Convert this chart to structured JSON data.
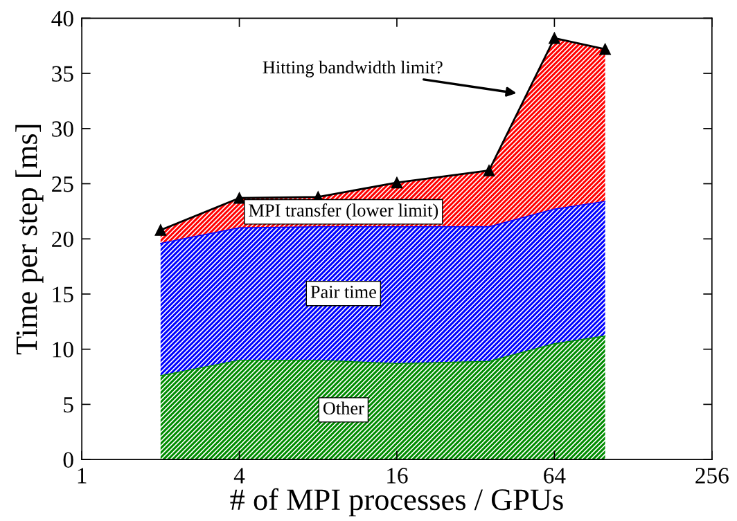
{
  "chart_data": {
    "type": "area",
    "stacked": true,
    "log": "x",
    "xlabel": "# of MPI processes / GPUs",
    "ylabel": "Time per step [ms]",
    "x": [
      2,
      4,
      8,
      16,
      36,
      64,
      100
    ],
    "series": [
      {
        "name": "Other",
        "color": "#008c00",
        "values": [
          7.6,
          9.0,
          9.0,
          8.7,
          8.9,
          10.5,
          11.2
        ]
      },
      {
        "name": "Pair time",
        "color": "#0000ff",
        "values": [
          12.0,
          12.0,
          12.1,
          12.4,
          12.2,
          12.2,
          12.2
        ]
      },
      {
        "name": "MPI transfer (lower limit)",
        "color": "#ff0000",
        "marker": "triangle",
        "values": [
          1.2,
          2.7,
          2.7,
          4.0,
          5.1,
          15.5,
          13.8
        ]
      }
    ],
    "line_style": "solid",
    "xlim": [
      1,
      256
    ],
    "xticks": [
      1,
      4,
      16,
      64,
      256
    ],
    "ylim": [
      0,
      40
    ],
    "yticks": [
      0,
      5,
      10,
      15,
      20,
      25,
      30,
      35,
      40
    ],
    "grid": false,
    "legend": false,
    "annotations": [
      "Hitting bandwidth limit?"
    ]
  }
}
